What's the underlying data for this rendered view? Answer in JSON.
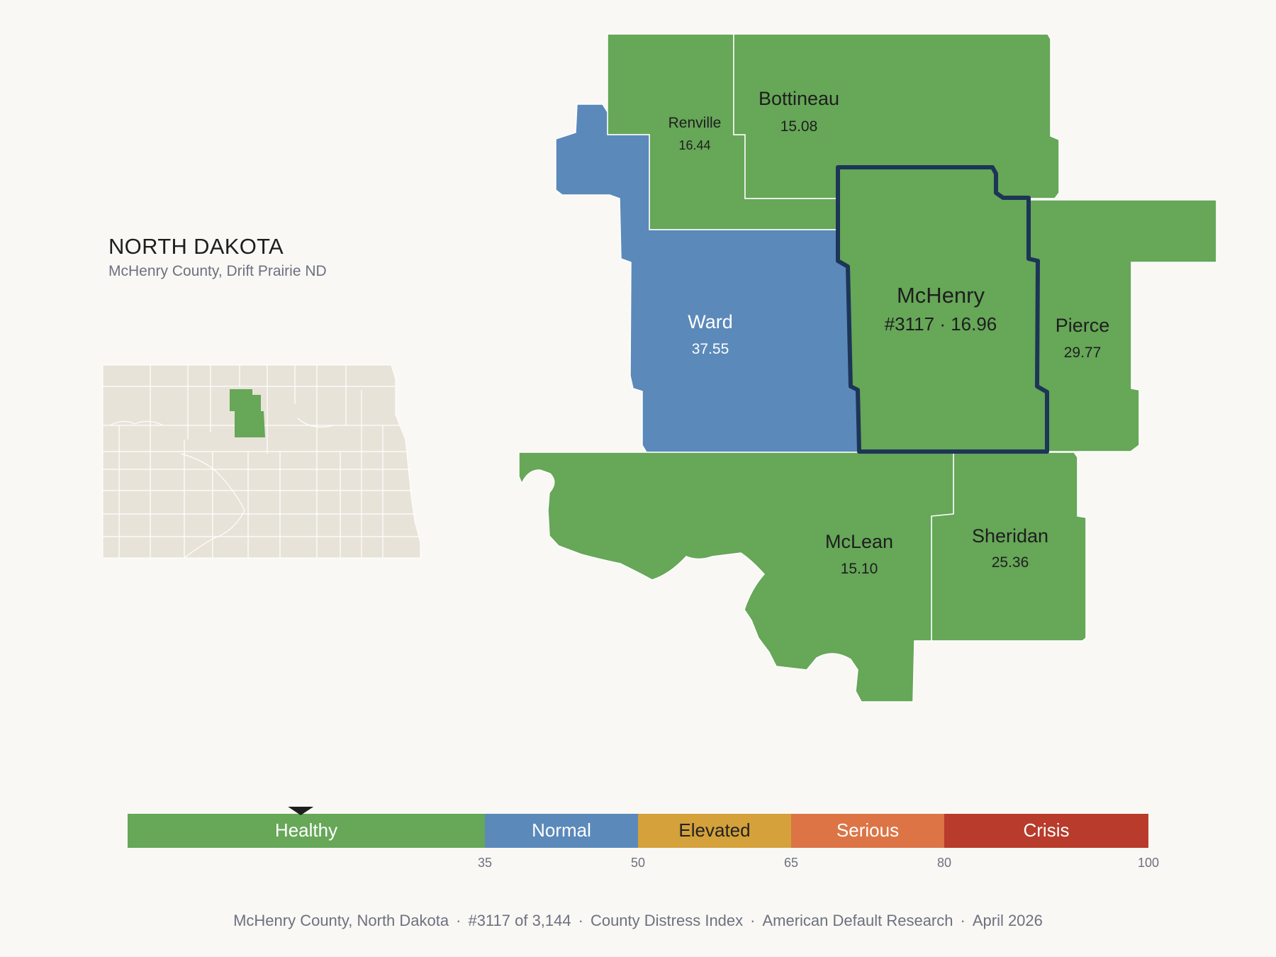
{
  "header": {
    "state": "NORTH DAKOTA",
    "subtitle": "McHenry County, Drift Prairie ND"
  },
  "counties": {
    "renville": {
      "name": "Renville",
      "score": "16.44",
      "fill": "#66a758"
    },
    "bottineau": {
      "name": "Bottineau",
      "score": "15.08",
      "fill": "#66a758"
    },
    "ward": {
      "name": "Ward",
      "score": "37.55",
      "fill": "#5b89ba"
    },
    "mchenry": {
      "name": "McHenry",
      "label": "#3117 · 16.96",
      "fill": "#66a758",
      "outline": "#1d3557"
    },
    "pierce": {
      "name": "Pierce",
      "score": "29.77",
      "fill": "#66a758"
    },
    "mclean": {
      "name": "McLean",
      "score": "15.10",
      "fill": "#66a758"
    },
    "sheridan": {
      "name": "Sheridan",
      "score": "25.36",
      "fill": "#66a758"
    }
  },
  "inset": {
    "base_fill": "#e8e3d8",
    "highlight_fill": "#66a758"
  },
  "legend": {
    "marker_value": 16.96,
    "segments": [
      {
        "label": "Healthy",
        "from": 0,
        "to": 35,
        "color": "#66a758",
        "text_color": "#ffffff"
      },
      {
        "label": "Normal",
        "from": 35,
        "to": 50,
        "color": "#5b89ba",
        "text_color": "#ffffff"
      },
      {
        "label": "Elevated",
        "from": 50,
        "to": 65,
        "color": "#d4a13a",
        "text_color": "#222222"
      },
      {
        "label": "Serious",
        "from": 65,
        "to": 80,
        "color": "#dc7446",
        "text_color": "#ffffff"
      },
      {
        "label": "Crisis",
        "from": 80,
        "to": 100,
        "color": "#b83b2b",
        "text_color": "#ffffff"
      }
    ],
    "ticks": [
      "35",
      "50",
      "65",
      "80",
      "100"
    ]
  },
  "footer": {
    "county": "McHenry County, North Dakota",
    "rank": "#3117 of 3,144",
    "index": "County Distress Index",
    "source": "American Default Research",
    "date": "April 2026"
  }
}
